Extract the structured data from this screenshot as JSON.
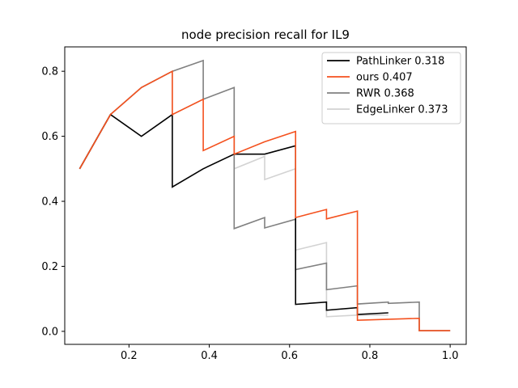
{
  "chart_data": {
    "type": "line",
    "title": "node precision recall for IL9",
    "xlabel": "",
    "ylabel": "",
    "xlim": [
      0.04,
      1.04
    ],
    "ylim": [
      -0.04,
      0.875
    ],
    "xticks": [
      "0.2",
      "0.4",
      "0.6",
      "0.8",
      "1.0"
    ],
    "xtick_values": [
      0.2,
      0.4,
      0.6,
      0.8,
      1.0
    ],
    "yticks": [
      "0.0",
      "0.2",
      "0.4",
      "0.6",
      "0.8"
    ],
    "ytick_values": [
      0.0,
      0.2,
      0.4,
      0.6,
      0.8
    ],
    "grid": false,
    "legend_position": "top-right",
    "series": [
      {
        "name": "PathLinker 0.318",
        "color": "#000000",
        "points": [
          [
            0.077,
            0.5
          ],
          [
            0.154,
            0.667
          ],
          [
            0.231,
            0.6
          ],
          [
            0.308,
            0.667
          ],
          [
            0.308,
            0.444
          ],
          [
            0.385,
            0.5
          ],
          [
            0.462,
            0.545
          ],
          [
            0.538,
            0.545
          ],
          [
            0.615,
            0.571
          ],
          [
            0.615,
            0.083
          ],
          [
            0.692,
            0.09
          ],
          [
            0.692,
            0.065
          ],
          [
            0.769,
            0.073
          ],
          [
            0.769,
            0.052
          ],
          [
            0.846,
            0.057
          ]
        ]
      },
      {
        "name": "ours 0.407",
        "color": "#f4511e",
        "points": [
          [
            0.077,
            0.5
          ],
          [
            0.154,
            0.667
          ],
          [
            0.231,
            0.75
          ],
          [
            0.308,
            0.8
          ],
          [
            0.308,
            0.667
          ],
          [
            0.385,
            0.714
          ],
          [
            0.385,
            0.556
          ],
          [
            0.462,
            0.6
          ],
          [
            0.462,
            0.545
          ],
          [
            0.538,
            0.583
          ],
          [
            0.615,
            0.615
          ],
          [
            0.615,
            0.35
          ],
          [
            0.692,
            0.375
          ],
          [
            0.692,
            0.346
          ],
          [
            0.769,
            0.37
          ],
          [
            0.769,
            0.034
          ],
          [
            0.923,
            0.04
          ],
          [
            0.923,
            0.002
          ],
          [
            1.0,
            0.002
          ]
        ]
      },
      {
        "name": "RWR 0.368",
        "color": "#808080",
        "points": [
          [
            0.077,
            0.5
          ],
          [
            0.154,
            0.667
          ],
          [
            0.231,
            0.75
          ],
          [
            0.308,
            0.8
          ],
          [
            0.385,
            0.833
          ],
          [
            0.385,
            0.714
          ],
          [
            0.462,
            0.75
          ],
          [
            0.462,
            0.316
          ],
          [
            0.538,
            0.35
          ],
          [
            0.538,
            0.318
          ],
          [
            0.615,
            0.345
          ],
          [
            0.615,
            0.19
          ],
          [
            0.692,
            0.21
          ],
          [
            0.692,
            0.128
          ],
          [
            0.769,
            0.14
          ],
          [
            0.769,
            0.084
          ],
          [
            0.846,
            0.09
          ],
          [
            0.846,
            0.086
          ],
          [
            0.923,
            0.09
          ],
          [
            0.923,
            0.002
          ],
          [
            1.0,
            0.002
          ]
        ]
      },
      {
        "name": "EdgeLinker 0.373",
        "color": "#d3d3d3",
        "points": [
          [
            0.077,
            0.5
          ],
          [
            0.154,
            0.667
          ],
          [
            0.231,
            0.75
          ],
          [
            0.308,
            0.8
          ],
          [
            0.308,
            0.667
          ],
          [
            0.385,
            0.714
          ],
          [
            0.462,
            0.75
          ],
          [
            0.462,
            0.5
          ],
          [
            0.538,
            0.538
          ],
          [
            0.538,
            0.467
          ],
          [
            0.615,
            0.5
          ],
          [
            0.615,
            0.25
          ],
          [
            0.692,
            0.273
          ],
          [
            0.692,
            0.045
          ],
          [
            0.769,
            0.05
          ],
          [
            0.769,
            0.05
          ],
          [
            0.846,
            0.05
          ]
        ]
      }
    ]
  }
}
